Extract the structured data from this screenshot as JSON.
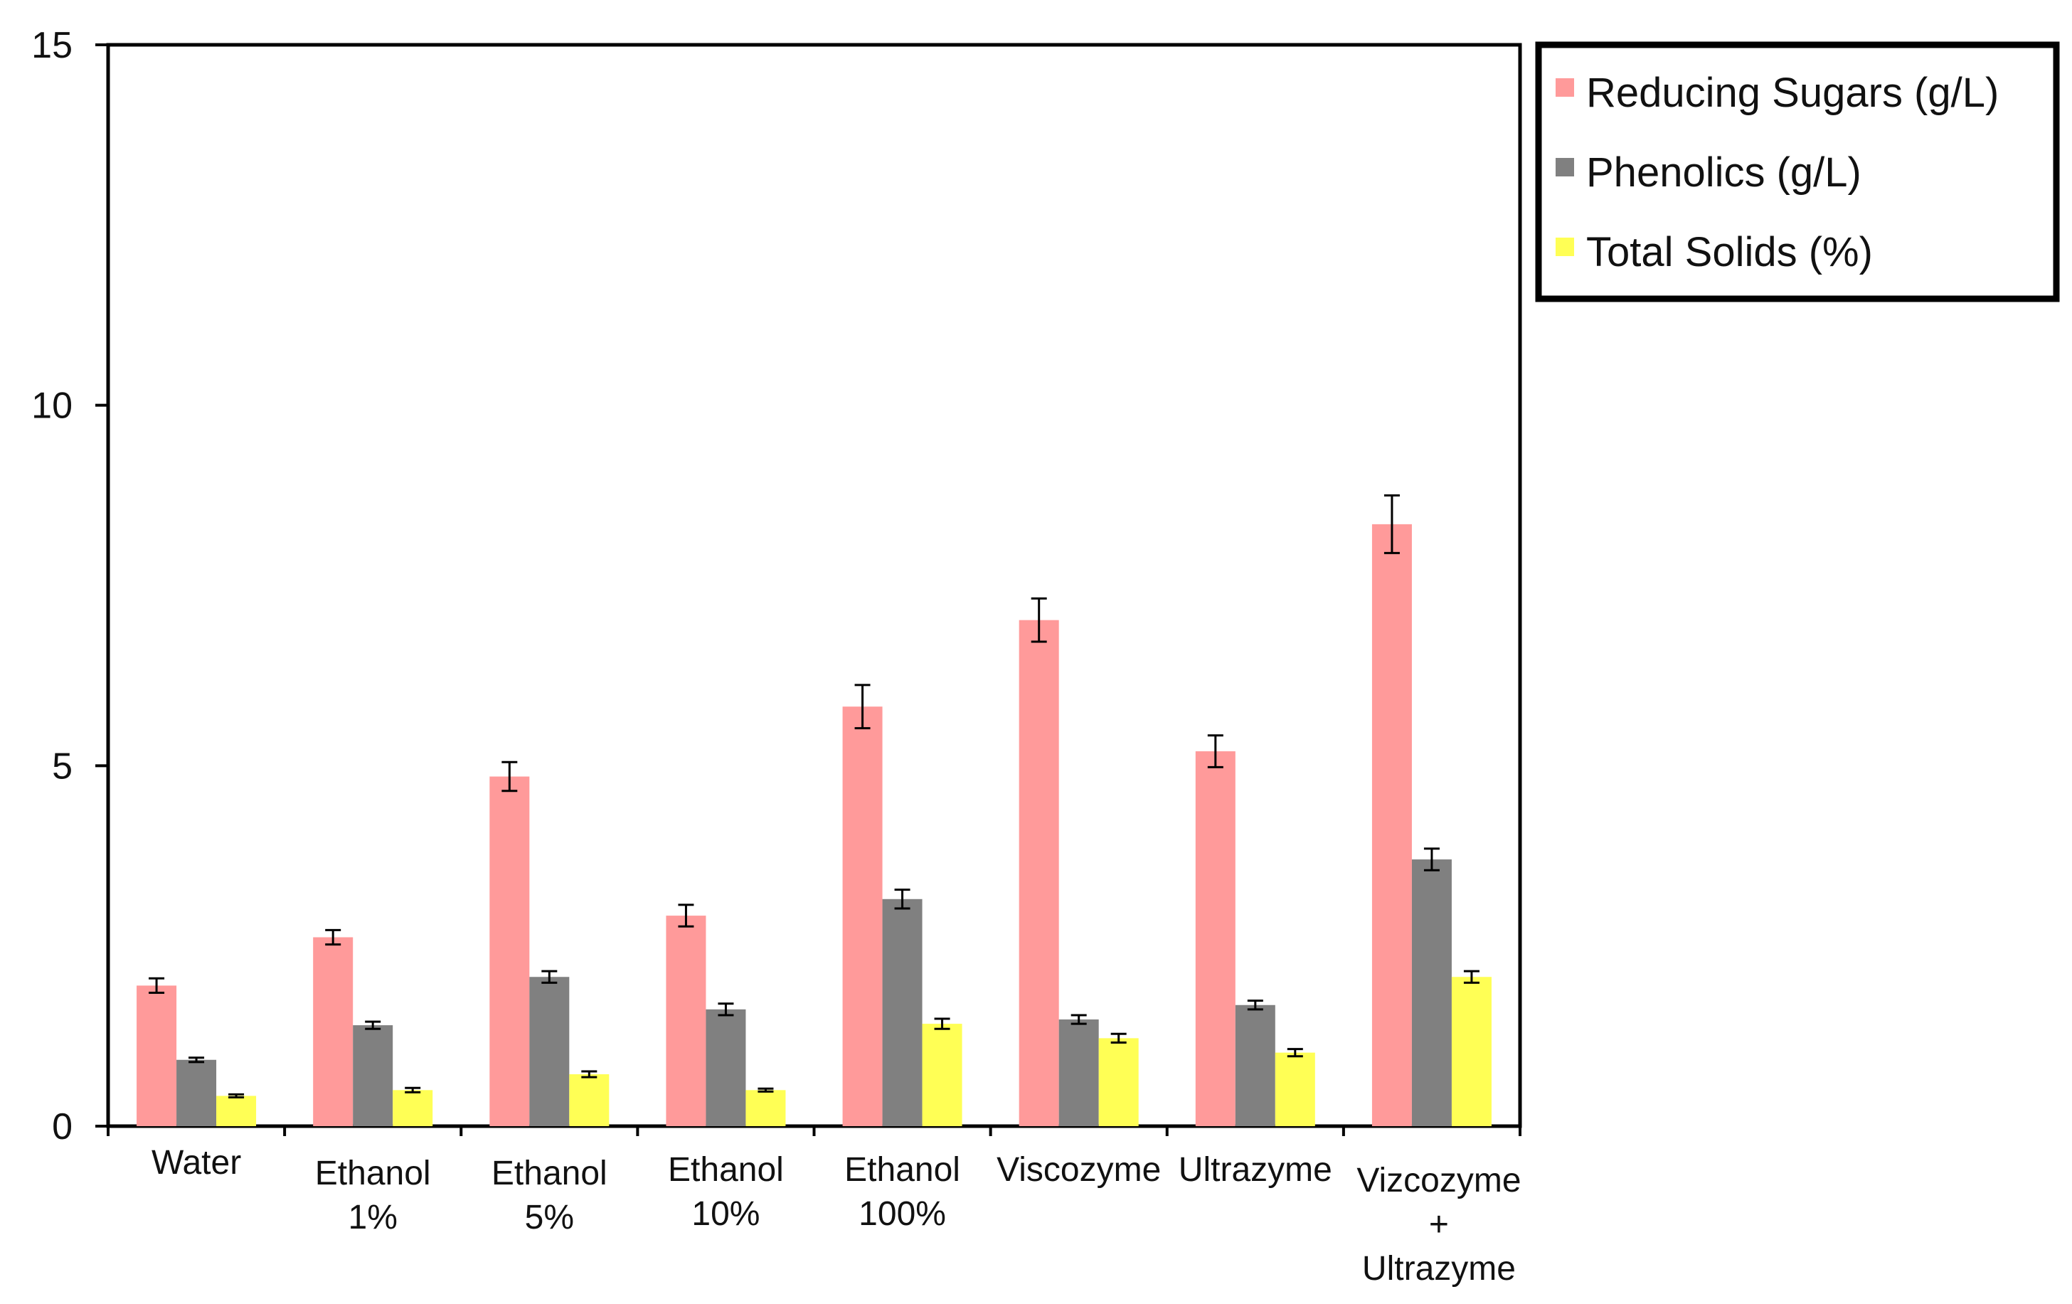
{
  "chart_data": {
    "type": "bar",
    "title": "",
    "xlabel": "",
    "ylabel": "",
    "ylim": [
      0,
      15
    ],
    "yticks": [
      0,
      5,
      10,
      15
    ],
    "categories": [
      [
        "Water"
      ],
      [
        "Ethanol",
        "1%"
      ],
      [
        "Ethanol",
        "5%"
      ],
      [
        "Ethanol",
        "10%"
      ],
      [
        "Ethanol",
        "100%"
      ],
      [
        "Viscozyme"
      ],
      [
        "Ultrazyme"
      ],
      [
        "Vizcozyme",
        "+",
        "Ultrazyme"
      ]
    ],
    "series": [
      {
        "name": "Reducing Sugars (g/L)",
        "color": "#ff9a9a",
        "values": [
          1.95,
          2.62,
          4.85,
          2.92,
          5.82,
          7.02,
          5.2,
          8.35
        ],
        "errors": [
          0.1,
          0.1,
          0.2,
          0.15,
          0.3,
          0.3,
          0.22,
          0.4
        ]
      },
      {
        "name": "Phenolics (g/L)",
        "color": "#808080",
        "values": [
          0.92,
          1.4,
          2.07,
          1.62,
          3.15,
          1.48,
          1.68,
          3.7
        ],
        "errors": [
          0.03,
          0.05,
          0.08,
          0.08,
          0.13,
          0.06,
          0.06,
          0.15
        ]
      },
      {
        "name": "Total Solids (%)",
        "color": "#ffff55",
        "values": [
          0.42,
          0.5,
          0.72,
          0.5,
          1.42,
          1.22,
          1.02,
          2.07
        ],
        "errors": [
          0.02,
          0.03,
          0.04,
          0.02,
          0.07,
          0.06,
          0.05,
          0.08
        ]
      }
    ],
    "legend_position": "top-right, outside plot",
    "grid": false
  }
}
